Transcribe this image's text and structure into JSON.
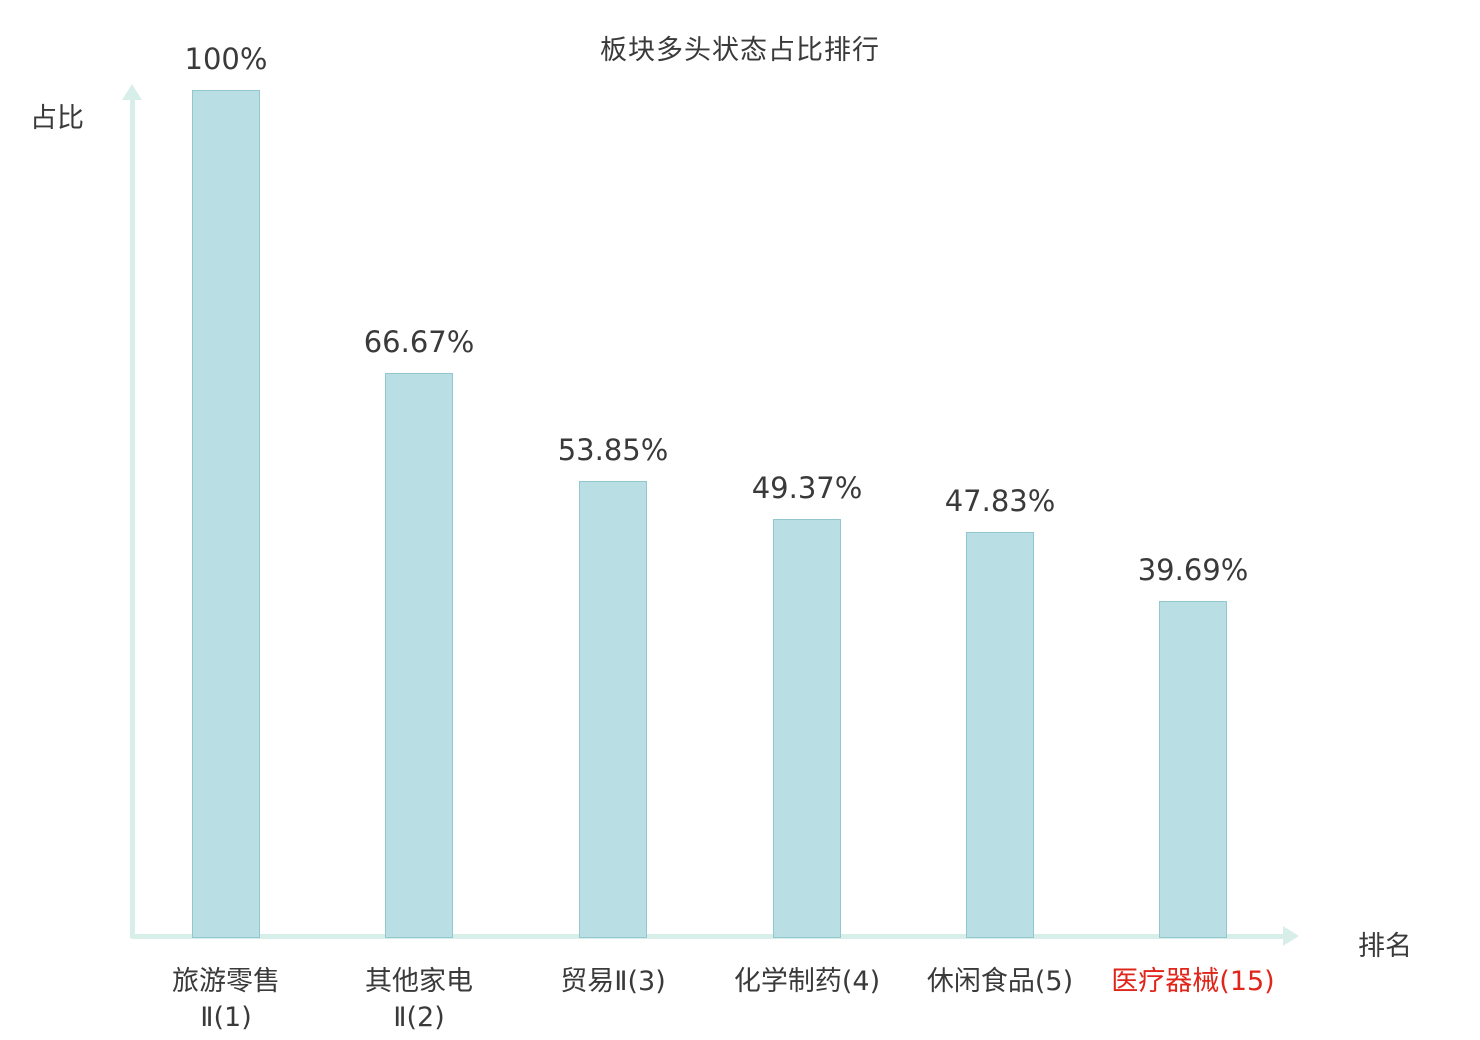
{
  "chart_data": {
    "type": "bar",
    "title": "板块多头状态占比排行",
    "xlabel": "排名",
    "ylabel": "占比",
    "ylim": [
      0,
      100
    ],
    "grid": false,
    "legend": "none",
    "categories": [
      "旅游零售\nⅡ(1)",
      "其他家电\nⅡ(2)",
      "贸易Ⅱ(3)",
      "化学制药(4)",
      "休闲食品(5)",
      "医疗器械(15)"
    ],
    "values": [
      100,
      66.67,
      53.85,
      49.37,
      47.83,
      39.69
    ],
    "value_labels": [
      "100%",
      "66.67%",
      "53.85%",
      "49.37%",
      "47.83%",
      "39.69%"
    ],
    "highlight_index": 5,
    "colors": {
      "bar_fill": "#b9dfe4",
      "bar_border": "#93c7ce",
      "axis": "#d8efe9",
      "text": "#3a3a3a",
      "highlight_text": "#e0251a",
      "background": "#ffffff"
    }
  }
}
